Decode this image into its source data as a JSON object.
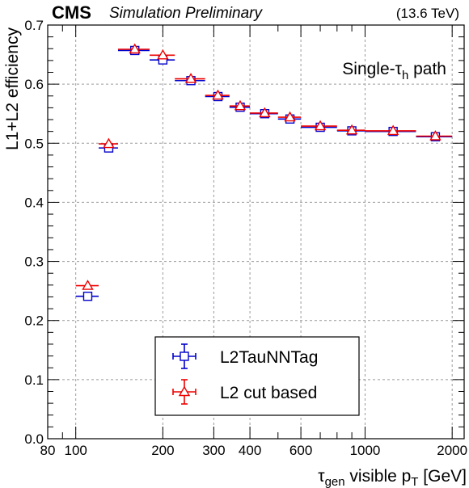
{
  "header": {
    "experiment": "CMS",
    "status": "Simulation Preliminary",
    "energy": "(13.6 TeV)"
  },
  "annotation": {
    "prefix": "Single-τ",
    "subscript": "h",
    "suffix": " path"
  },
  "chart_data": {
    "type": "scatter",
    "x_scale": "log",
    "xlim": [
      80,
      2200
    ],
    "ylim": [
      0,
      0.7
    ],
    "xlabel": {
      "main": "τ",
      "sub1": "gen",
      "mid": " visible p",
      "sub2": "T",
      "tail": " [GeV]"
    },
    "ylabel": "L1+L2 efficiency",
    "x_ticks": [
      80,
      100,
      200,
      300,
      400,
      600,
      1000,
      2000
    ],
    "x_tick_labels": [
      "80",
      "100",
      "200",
      "300",
      "400",
      "600",
      "1000",
      "2000"
    ],
    "y_ticks": [
      0,
      0.1,
      0.2,
      0.3,
      0.4,
      0.5,
      0.6,
      0.7
    ],
    "y_tick_labels": [
      "0.0",
      "0.1",
      "0.2",
      "0.3",
      "0.4",
      "0.5",
      "0.6",
      "0.7"
    ],
    "grid": true,
    "legend_position": "bottom-center",
    "series": [
      {
        "name": "L2TauNNTag",
        "color": "#0000cc",
        "marker": "square-open",
        "points": [
          {
            "x": 110,
            "xlo": 100,
            "xhi": 120,
            "y": 0.241,
            "yerr": 0.004
          },
          {
            "x": 130,
            "xlo": 120,
            "xhi": 140,
            "y": 0.492,
            "yerr": 0.005
          },
          {
            "x": 160,
            "xlo": 140,
            "xhi": 180,
            "y": 0.657,
            "yerr": 0.005
          },
          {
            "x": 200,
            "xlo": 180,
            "xhi": 220,
            "y": 0.641,
            "yerr": 0.005
          },
          {
            "x": 250,
            "xlo": 220,
            "xhi": 280,
            "y": 0.606,
            "yerr": 0.004
          },
          {
            "x": 310,
            "xlo": 280,
            "xhi": 340,
            "y": 0.579,
            "yerr": 0.004
          },
          {
            "x": 370,
            "xlo": 340,
            "xhi": 400,
            "y": 0.561,
            "yerr": 0.004
          },
          {
            "x": 450,
            "xlo": 400,
            "xhi": 500,
            "y": 0.55,
            "yerr": 0.004
          },
          {
            "x": 550,
            "xlo": 500,
            "xhi": 600,
            "y": 0.541,
            "yerr": 0.004
          },
          {
            "x": 700,
            "xlo": 600,
            "xhi": 800,
            "y": 0.527,
            "yerr": 0.004
          },
          {
            "x": 900,
            "xlo": 800,
            "xhi": 1000,
            "y": 0.521,
            "yerr": 0.004
          },
          {
            "x": 1250,
            "xlo": 1000,
            "xhi": 1500,
            "y": 0.52,
            "yerr": 0.004
          },
          {
            "x": 1750,
            "xlo": 1500,
            "xhi": 2000,
            "y": 0.511,
            "yerr": 0.004
          }
        ]
      },
      {
        "name": "L2 cut based",
        "color": "#ee0000",
        "marker": "triangle-open",
        "points": [
          {
            "x": 110,
            "xlo": 100,
            "xhi": 120,
            "y": 0.259,
            "yerr": 0.004
          },
          {
            "x": 130,
            "xlo": 120,
            "xhi": 140,
            "y": 0.499,
            "yerr": 0.005
          },
          {
            "x": 160,
            "xlo": 140,
            "xhi": 180,
            "y": 0.659,
            "yerr": 0.005
          },
          {
            "x": 200,
            "xlo": 180,
            "xhi": 220,
            "y": 0.649,
            "yerr": 0.005
          },
          {
            "x": 250,
            "xlo": 220,
            "xhi": 280,
            "y": 0.609,
            "yerr": 0.004
          },
          {
            "x": 310,
            "xlo": 280,
            "xhi": 340,
            "y": 0.581,
            "yerr": 0.004
          },
          {
            "x": 370,
            "xlo": 340,
            "xhi": 400,
            "y": 0.563,
            "yerr": 0.004
          },
          {
            "x": 450,
            "xlo": 400,
            "xhi": 500,
            "y": 0.551,
            "yerr": 0.004
          },
          {
            "x": 550,
            "xlo": 500,
            "xhi": 600,
            "y": 0.544,
            "yerr": 0.004
          },
          {
            "x": 700,
            "xlo": 600,
            "xhi": 800,
            "y": 0.529,
            "yerr": 0.004
          },
          {
            "x": 900,
            "xlo": 800,
            "xhi": 1000,
            "y": 0.522,
            "yerr": 0.004
          },
          {
            "x": 1250,
            "xlo": 1000,
            "xhi": 1500,
            "y": 0.521,
            "yerr": 0.004
          },
          {
            "x": 1750,
            "xlo": 1500,
            "xhi": 2000,
            "y": 0.512,
            "yerr": 0.004
          }
        ]
      }
    ]
  }
}
